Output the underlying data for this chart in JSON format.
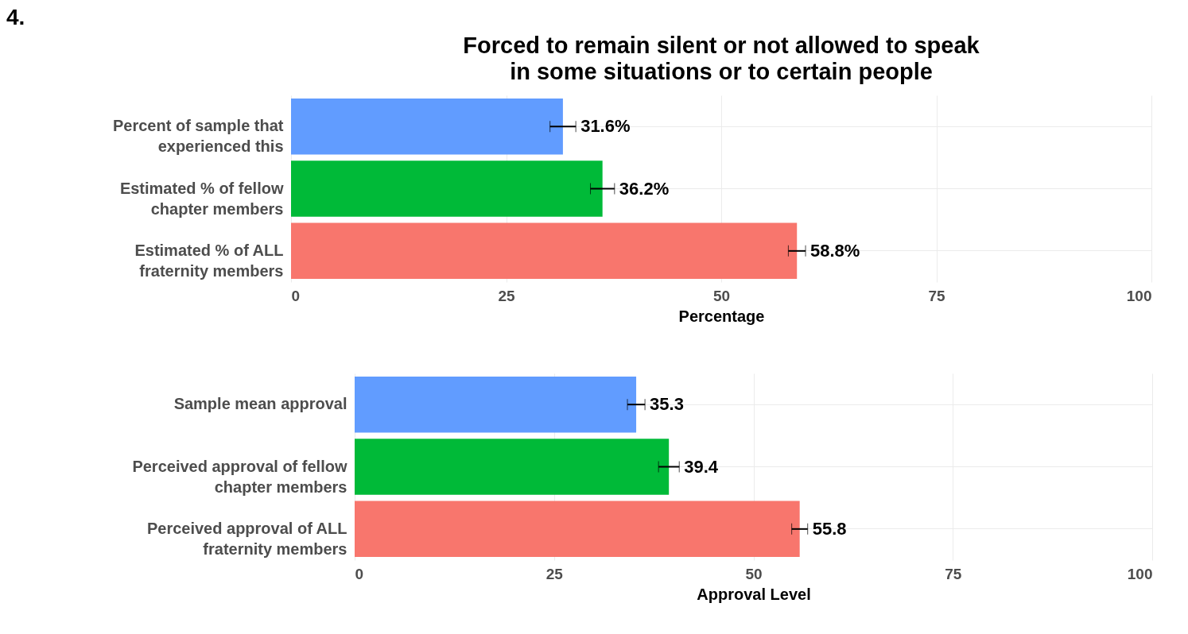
{
  "chart_data": [
    {
      "type": "bar",
      "orientation": "horizontal",
      "title": "Forced to remain silent or not allowed to speak in some situations or to certain people",
      "annotations": [
        "4."
      ],
      "xlabel": "Percentage",
      "categories": [
        "Percent of sample that experienced this",
        "Estimated % of fellow chapter members",
        "Estimated % of ALL fraternity members"
      ],
      "values": [
        31.6,
        36.2,
        58.8
      ],
      "errors": [
        1.5,
        1.4,
        1.0
      ],
      "colors": [
        "#619cff",
        "#00ba38",
        "#f8766d"
      ],
      "value_labels": [
        "31.6%",
        "36.2%",
        "58.8%"
      ],
      "xlim": [
        0,
        100
      ],
      "xticks": [
        0,
        25,
        50,
        75,
        100
      ],
      "grid": true
    },
    {
      "type": "bar",
      "orientation": "horizontal",
      "xlabel": "Approval Level",
      "categories": [
        "Sample mean approval",
        "Perceived approval of fellow chapter members",
        "Perceived approval of ALL fraternity members"
      ],
      "values": [
        35.3,
        39.4,
        55.8
      ],
      "errors": [
        1.1,
        1.3,
        1.0
      ],
      "colors": [
        "#619cff",
        "#00ba38",
        "#f8766d"
      ],
      "data_labels": true,
      "xlim": [
        0,
        100
      ],
      "xticks": [
        0,
        25,
        50,
        75,
        100
      ],
      "grid": true
    }
  ]
}
